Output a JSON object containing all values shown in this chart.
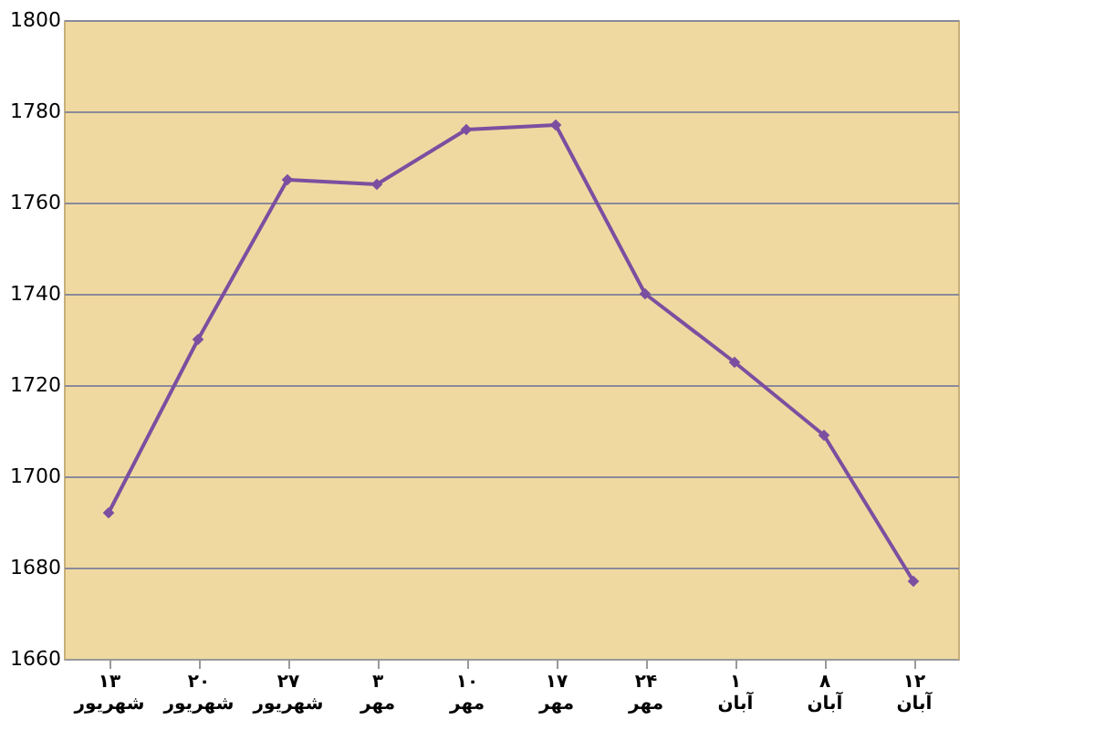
{
  "chart_data": {
    "type": "line",
    "categories": [
      "۱۳ شهریور",
      "۲۰ شهریور",
      "۲۷ شهریور",
      "۳ مهر",
      "۱۰ مهر",
      "۱۷ مهر",
      "۲۴ مهر",
      "۱ آبان",
      "۸ آبان",
      "۱۲ آبان"
    ],
    "series": [
      {
        "color": "#7b4fa0",
        "values": [
          1692,
          1730,
          1765,
          1764,
          1776,
          1777,
          1740,
          1725,
          1709,
          1677
        ]
      }
    ],
    "ylim": [
      1660,
      1800
    ],
    "yticks": [
      1660,
      1680,
      1700,
      1720,
      1740,
      1760,
      1780,
      1800
    ],
    "grid": "y",
    "marker": "diamond",
    "line_style": "solid"
  }
}
